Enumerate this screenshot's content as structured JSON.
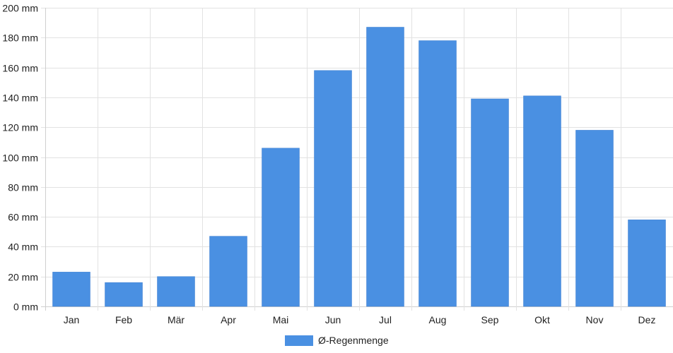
{
  "chart_data": {
    "type": "bar",
    "categories": [
      "Jan",
      "Feb",
      "Mär",
      "Apr",
      "Mai",
      "Jun",
      "Jul",
      "Aug",
      "Sep",
      "Okt",
      "Nov",
      "Dez"
    ],
    "series": [
      {
        "name": "Ø-Regenmenge",
        "values": [
          23,
          16,
          20,
          47,
          106,
          158,
          187,
          178,
          139,
          141,
          118,
          58
        ],
        "color": "#4a90e2"
      }
    ],
    "y_unit": "mm",
    "ylim": [
      0,
      200
    ],
    "y_ticks": [
      0,
      20,
      40,
      60,
      80,
      100,
      120,
      140,
      160,
      180,
      200
    ],
    "y_tick_labels": [
      "0 mm",
      "20 mm",
      "40 mm",
      "60 mm",
      "80 mm",
      "100 mm",
      "120 mm",
      "140 mm",
      "160 mm",
      "180 mm",
      "200 mm"
    ],
    "grid": true,
    "legend_position": "bottom-center"
  }
}
